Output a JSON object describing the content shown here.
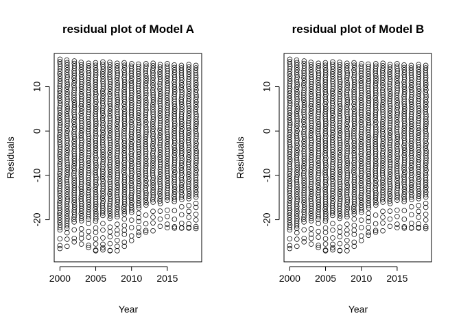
{
  "chart_data": [
    {
      "type": "scatter",
      "title": "residual plot of Model A",
      "xlabel": "Year",
      "ylabel": "Residuals",
      "xlim": [
        1999.2,
        2019.8
      ],
      "ylim": [
        -29.5,
        17.5
      ],
      "xticks": [
        2000,
        2005,
        2010,
        2015
      ],
      "yticks": [
        -20,
        -10,
        0,
        10
      ],
      "grid": false,
      "legend": "none",
      "marker": "open-circle",
      "color": "#000000",
      "years": [
        2000,
        2001,
        2002,
        2003,
        2004,
        2005,
        2006,
        2007,
        2008,
        2009,
        2010,
        2011,
        2012,
        2013,
        2014,
        2015,
        2016,
        2017,
        2018,
        2019
      ],
      "residual_max": [
        16.2,
        16.0,
        15.8,
        15.5,
        15.3,
        15.4,
        15.6,
        15.5,
        15.3,
        15.4,
        15.2,
        15.1,
        15.2,
        15.3,
        15.0,
        15.2,
        14.9,
        14.8,
        15.0,
        14.8
      ],
      "residual_min": [
        -26.5,
        -26.0,
        -25.0,
        -25.5,
        -26.3,
        -27.0,
        -26.8,
        -27.0,
        -27.0,
        -26.0,
        -24.7,
        -23.5,
        -22.8,
        -22.5,
        -21.5,
        -21.8,
        -21.9,
        -21.9,
        -21.9,
        -22.0
      ],
      "dense_low": [
        -22.5,
        -22.0,
        -21.0,
        -20.5,
        -20.0,
        -20.5,
        -19.5,
        -20.0,
        -19.5,
        -19.0,
        -18.5,
        -17.5,
        -17.0,
        -16.5,
        -16.5,
        -16.0,
        -16.0,
        -15.5,
        -15.5,
        -15.0
      ]
    },
    {
      "type": "scatter",
      "title": "residual plot of Model B",
      "xlabel": "Year",
      "ylabel": "Residuals",
      "xlim": [
        1999.2,
        2019.8
      ],
      "ylim": [
        -29.5,
        17.5
      ],
      "xticks": [
        2000,
        2005,
        2010,
        2015
      ],
      "yticks": [
        -20,
        -10,
        0,
        10
      ],
      "grid": false,
      "legend": "none",
      "marker": "open-circle",
      "color": "#000000",
      "years": [
        2000,
        2001,
        2002,
        2003,
        2004,
        2005,
        2006,
        2007,
        2008,
        2009,
        2010,
        2011,
        2012,
        2013,
        2014,
        2015,
        2016,
        2017,
        2018,
        2019
      ],
      "residual_max": [
        16.2,
        16.0,
        15.8,
        15.5,
        15.3,
        15.4,
        15.6,
        15.5,
        15.3,
        15.4,
        15.2,
        15.1,
        15.2,
        15.3,
        15.0,
        15.2,
        14.9,
        14.8,
        15.0,
        14.8
      ],
      "residual_min": [
        -26.5,
        -26.0,
        -25.0,
        -25.5,
        -26.3,
        -27.0,
        -26.8,
        -27.0,
        -27.0,
        -26.0,
        -24.7,
        -23.5,
        -22.8,
        -22.5,
        -21.5,
        -21.8,
        -21.9,
        -21.9,
        -21.9,
        -22.0
      ],
      "dense_low": [
        -22.5,
        -22.0,
        -21.0,
        -20.5,
        -20.0,
        -20.5,
        -19.5,
        -20.0,
        -19.5,
        -19.0,
        -18.5,
        -17.5,
        -17.0,
        -16.5,
        -16.5,
        -16.0,
        -16.0,
        -15.5,
        -15.5,
        -15.0
      ]
    }
  ]
}
